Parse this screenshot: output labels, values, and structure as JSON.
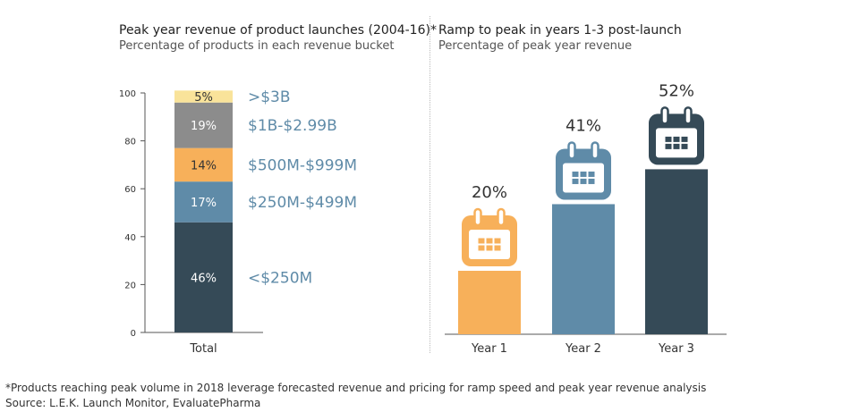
{
  "chart_data": [
    {
      "type": "bar",
      "stacked": true,
      "title": "Peak year revenue of product launches (2004-16)*",
      "subtitle": "Percentage of products in each revenue bucket",
      "categories": [
        "Total"
      ],
      "ylim": [
        0,
        100
      ],
      "yticks": [
        "0",
        "20",
        "40",
        "60",
        "80",
        "100"
      ],
      "series": [
        {
          "name": "<$250M",
          "values": [
            46
          ],
          "label": "46%",
          "color": "#354a57",
          "text_color": "#ffffff"
        },
        {
          "name": "$250M-$499M",
          "values": [
            17
          ],
          "label": "17%",
          "color": "#5f8ba8",
          "text_color": "#ffffff"
        },
        {
          "name": "$500M-$999M",
          "values": [
            14
          ],
          "label": "14%",
          "color": "#f7b05a",
          "text_color": "#333333"
        },
        {
          "name": "$1B-$2.99B",
          "values": [
            19
          ],
          "label": "19%",
          "color": "#8c8c8c",
          "text_color": "#ffffff"
        },
        {
          "name": ">$3B",
          "values": [
            5
          ],
          "label": "5%",
          "color": "#f9e39a",
          "text_color": "#333333"
        }
      ],
      "legend_color": "#5f8ba8"
    },
    {
      "type": "bar",
      "title": "Ramp to peak in years 1-3 post-launch",
      "subtitle": "Percentage of peak year revenue",
      "categories": [
        "Year 1",
        "Year 2",
        "Year 3"
      ],
      "values": [
        20,
        41,
        52
      ],
      "labels": [
        "20%",
        "41%",
        "52%"
      ],
      "colors": [
        "#f7b05a",
        "#5f8ba8",
        "#354a57"
      ],
      "icon": "calendar-icon",
      "ylim": [
        0,
        60
      ]
    }
  ],
  "footnotes": [
    "*Products reaching peak volume in 2018 leverage forecasted revenue and pricing for ramp speed and peak year revenue analysis",
    "Source: L.E.K. Launch Monitor, EvaluatePharma"
  ]
}
